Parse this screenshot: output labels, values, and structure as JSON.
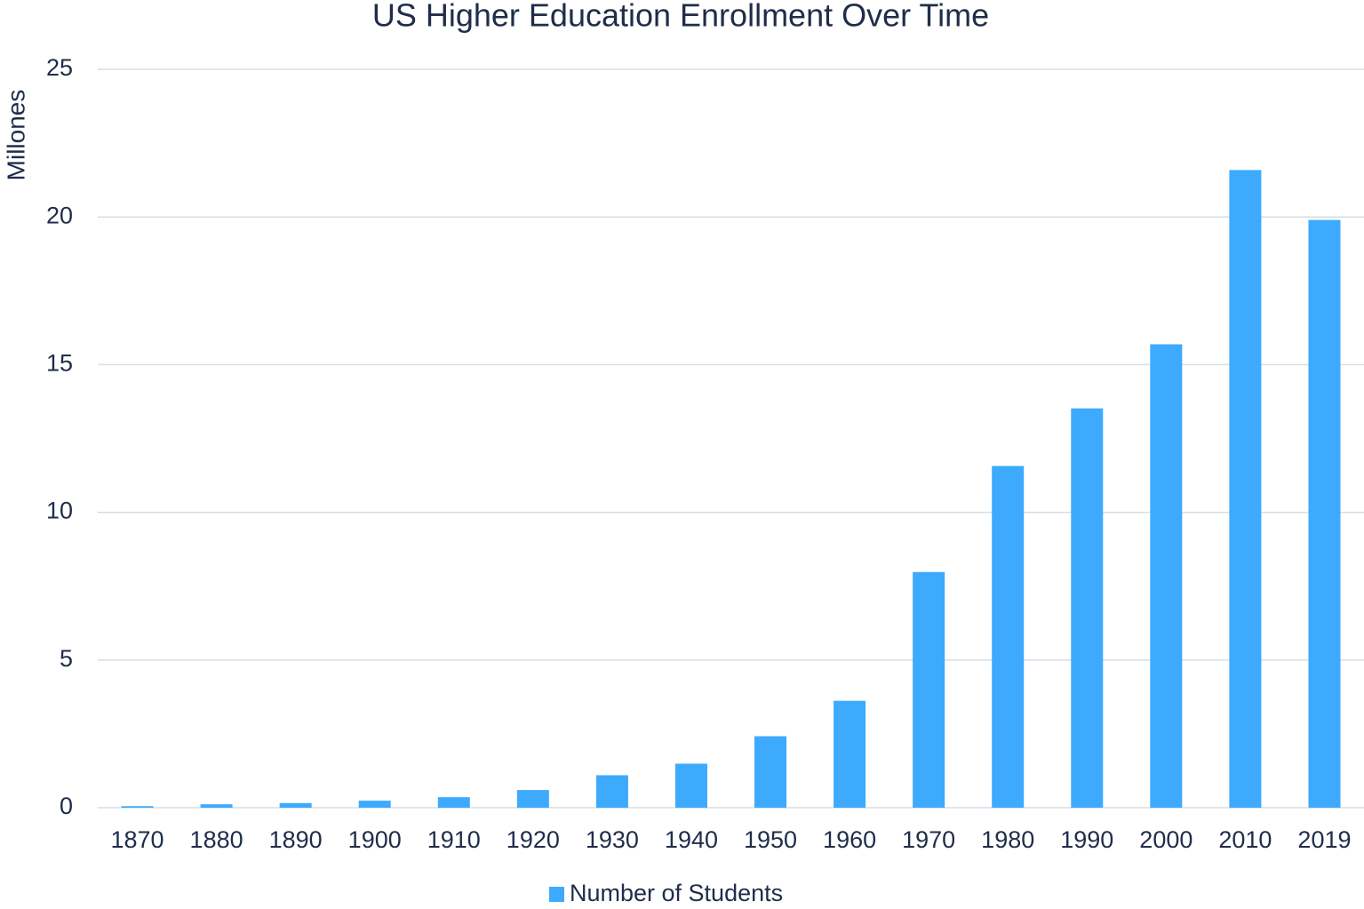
{
  "chart_data": {
    "type": "bar",
    "title": "US Higher Education Enrollment Over Time",
    "y_label": "Millones",
    "categories": [
      "1870",
      "1880",
      "1890",
      "1900",
      "1910",
      "1920",
      "1930",
      "1940",
      "1950",
      "1960",
      "1970",
      "1980",
      "1990",
      "2000",
      "2010",
      "2019"
    ],
    "series": [
      {
        "name": "Number of Students",
        "color": "#3daafd",
        "values": [
          0.052,
          0.116,
          0.157,
          0.238,
          0.355,
          0.598,
          1.1,
          1.49,
          2.42,
          3.62,
          7.98,
          11.57,
          13.52,
          15.69,
          21.59,
          19.9
        ]
      }
    ],
    "ylim": [
      0,
      25
    ],
    "yticks": [
      0,
      5,
      10,
      15,
      20,
      25
    ],
    "grid": true,
    "legend": "bottom"
  }
}
